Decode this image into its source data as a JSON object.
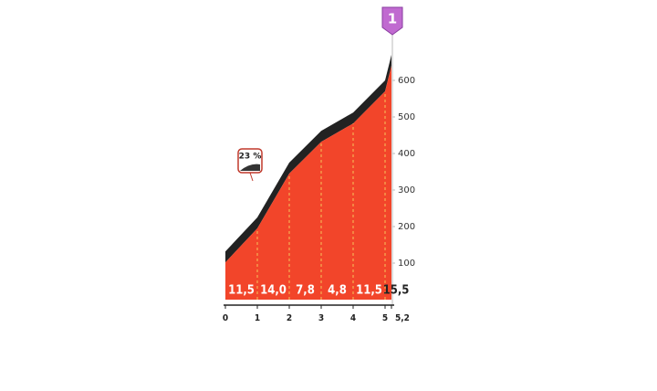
{
  "chart_data": {
    "type": "profile",
    "badge": "1",
    "annotation": "23 %",
    "x": [
      0,
      1,
      2,
      3,
      4,
      5,
      5.2
    ],
    "elevation": [
      102,
      195,
      345,
      432,
      482,
      570,
      640
    ],
    "color": "#f2452a",
    "segment_gradients": [
      11.5,
      14.0,
      7.8,
      4.8,
      11.5,
      15.5
    ],
    "value_labels": [
      "11,5",
      "14,0",
      "7,8",
      "4,8",
      "11,5",
      "15,5"
    ],
    "xlim": [
      0,
      5.2
    ],
    "xticks": [
      0,
      1,
      2,
      3,
      4,
      5,
      {
        "value": 5.2,
        "label": "5,2"
      }
    ],
    "ylim": [
      0,
      650
    ],
    "yticks": [
      100,
      200,
      300,
      400,
      500,
      600
    ]
  }
}
